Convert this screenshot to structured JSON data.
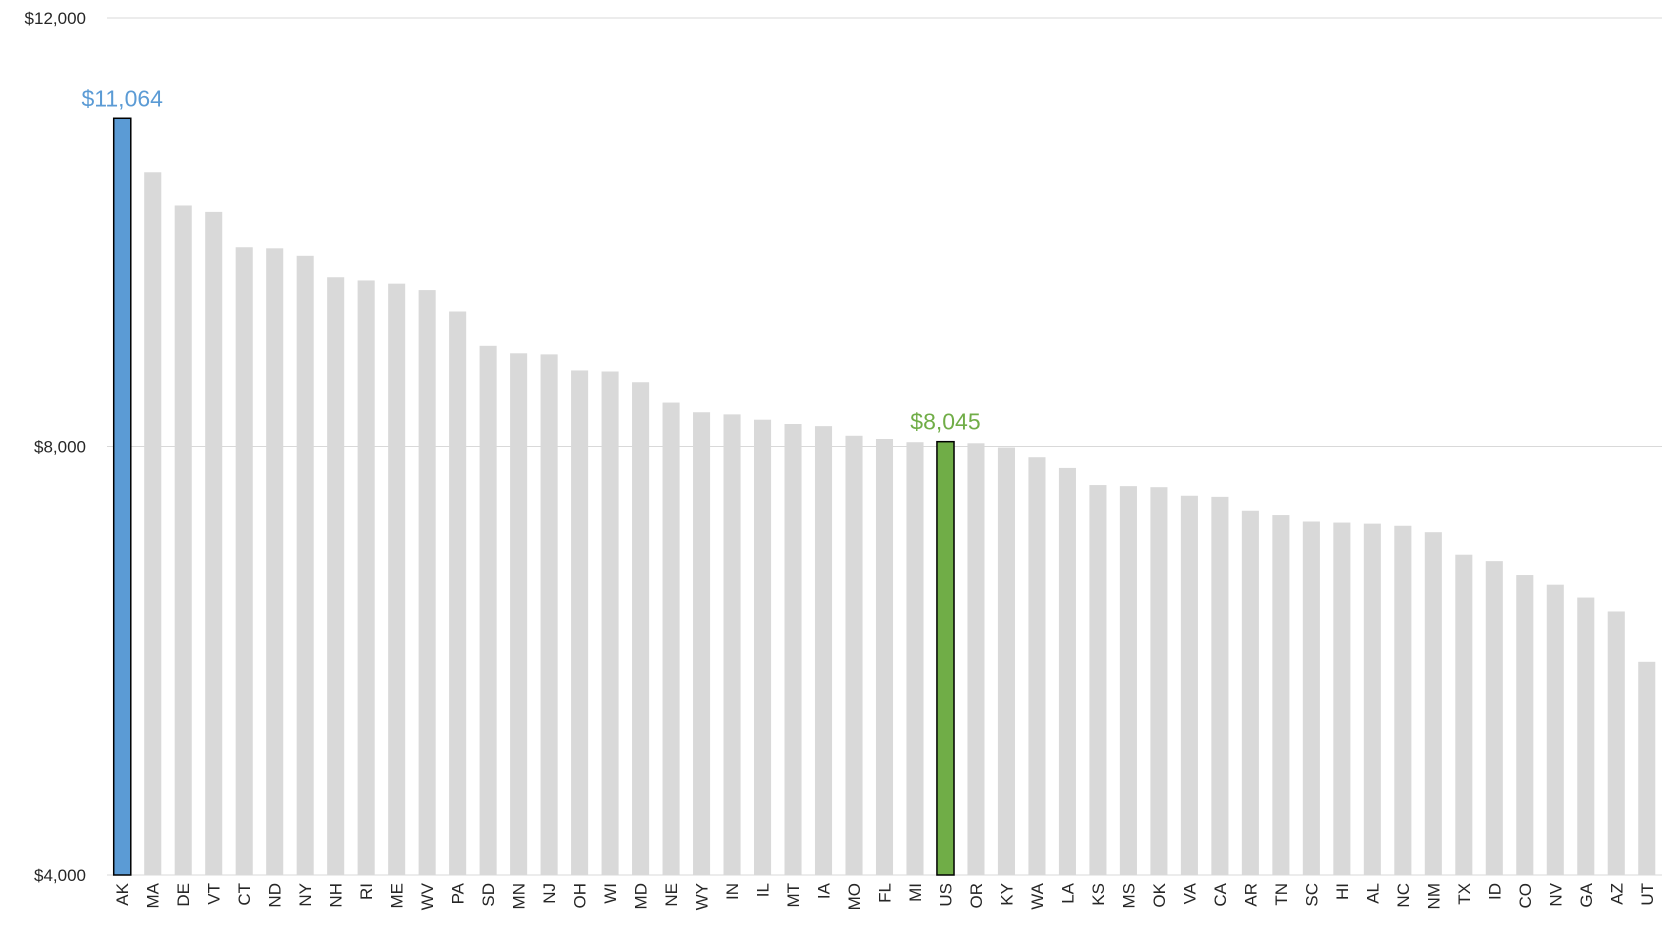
{
  "chart_data": {
    "type": "bar",
    "title": "",
    "xlabel": "",
    "ylabel": "",
    "ylim": [
      4000,
      12000
    ],
    "yticks": [
      {
        "value": 4000,
        "label": "$4,000"
      },
      {
        "value": 8000,
        "label": "$8,000"
      },
      {
        "value": 12000,
        "label": "$12,000"
      }
    ],
    "grid": true,
    "categories": [
      "AK",
      "MA",
      "DE",
      "VT",
      "CT",
      "ND",
      "NY",
      "NH",
      "RI",
      "ME",
      "WV",
      "PA",
      "SD",
      "MN",
      "NJ",
      "OH",
      "WI",
      "MD",
      "NE",
      "WY",
      "IN",
      "IL",
      "MT",
      "IA",
      "MO",
      "FL",
      "MI",
      "US",
      "OR",
      "KY",
      "WA",
      "LA",
      "KS",
      "MS",
      "OK",
      "VA",
      "CA",
      "AR",
      "TN",
      "SC",
      "HI",
      "AL",
      "NC",
      "NM",
      "TX",
      "ID",
      "CO",
      "NV",
      "GA",
      "AZ",
      "UT"
    ],
    "values": [
      11064,
      10560,
      10250,
      10190,
      9860,
      9850,
      9780,
      9580,
      9550,
      9520,
      9460,
      9260,
      8940,
      8870,
      8860,
      8710,
      8700,
      8600,
      8410,
      8320,
      8300,
      8250,
      8210,
      8190,
      8100,
      8070,
      8040,
      8045,
      8030,
      7990,
      7900,
      7800,
      7640,
      7630,
      7620,
      7540,
      7530,
      7400,
      7360,
      7300,
      7290,
      7280,
      7260,
      7200,
      6990,
      6930,
      6800,
      6710,
      6590,
      6460,
      5990
    ],
    "highlights": [
      {
        "category": "AK",
        "label": "$11,064",
        "color": "#5b9bd5"
      },
      {
        "category": "US",
        "label": "$8,045",
        "color": "#70ad47"
      }
    ],
    "default_color": "#d9d9d9",
    "gridline_color": "#d9d9d9",
    "axis_label_color": "#262626"
  }
}
